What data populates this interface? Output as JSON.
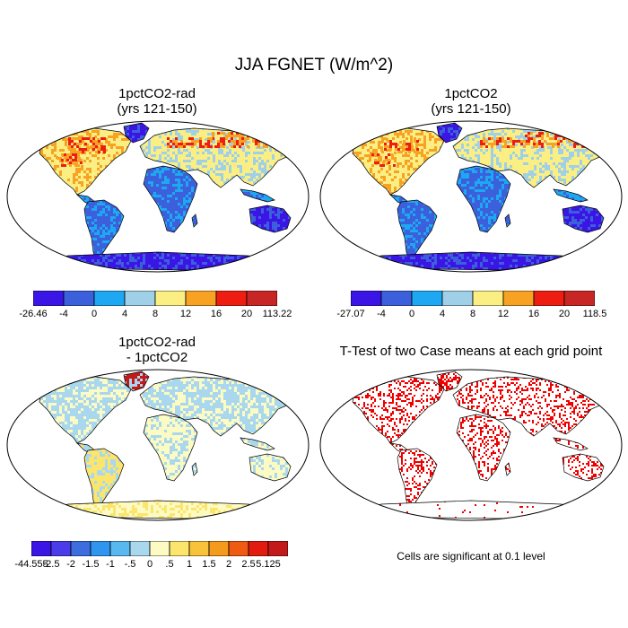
{
  "figure": {
    "title": "JJA FGNET (W/m^2)"
  },
  "panels": [
    {
      "id": "panel-1pctco2-rad",
      "title_lines": [
        "1pctCO2-rad",
        "(yrs 121-150)"
      ],
      "field": "full"
    },
    {
      "id": "panel-1pctco2",
      "title_lines": [
        "1pctCO2",
        "(yrs 121-150)"
      ],
      "field": "full"
    },
    {
      "id": "panel-difference",
      "title_lines": [
        "1pctCO2-rad",
        "- 1pctCO2"
      ],
      "field": "diff"
    },
    {
      "id": "panel-ttest",
      "title_lines": [
        "T-Test of two Case means at each grid point"
      ],
      "field": "ttest",
      "note": "Cells are significant at 0.1 level"
    }
  ],
  "colorbars": [
    {
      "id": "colorbar-1pctco2-rad",
      "labels": [
        "-26.46",
        "-4",
        "0",
        "4",
        "8",
        "12",
        "16",
        "20",
        "113.22"
      ],
      "colors": [
        "#3b14e6",
        "#3c5fdc",
        "#1ea8f2",
        "#9fd0e8",
        "#fbef84",
        "#f7a223",
        "#ee1d12",
        "#c82525"
      ]
    },
    {
      "id": "colorbar-1pctco2",
      "labels": [
        "-27.07",
        "-4",
        "0",
        "4",
        "8",
        "12",
        "16",
        "20",
        "118.5"
      ],
      "colors": [
        "#3b14e6",
        "#3c5fdc",
        "#1ea8f2",
        "#9fd0e8",
        "#fbef84",
        "#f7a223",
        "#ee1d12",
        "#c82525"
      ]
    },
    {
      "id": "colorbar-difference",
      "labels": [
        "-44.555",
        "-2.5",
        "-2",
        "-1.5",
        "-1",
        "-.5",
        "0",
        ".5",
        "1",
        "1.5",
        "2",
        "2.5",
        "5.125"
      ],
      "colors": [
        "#3b14e6",
        "#4a3ce8",
        "#3c6ee0",
        "#2f95ef",
        "#5ab8f0",
        "#a9d8ee",
        "#fdfbc4",
        "#fbe56c",
        "#f8c23a",
        "#f49a1d",
        "#ef5b12",
        "#e11b10",
        "#c21a1a"
      ]
    }
  ],
  "colors": {
    "ocean": "#ffffff",
    "coast": "#000000",
    "significant": "#ee0000"
  }
}
